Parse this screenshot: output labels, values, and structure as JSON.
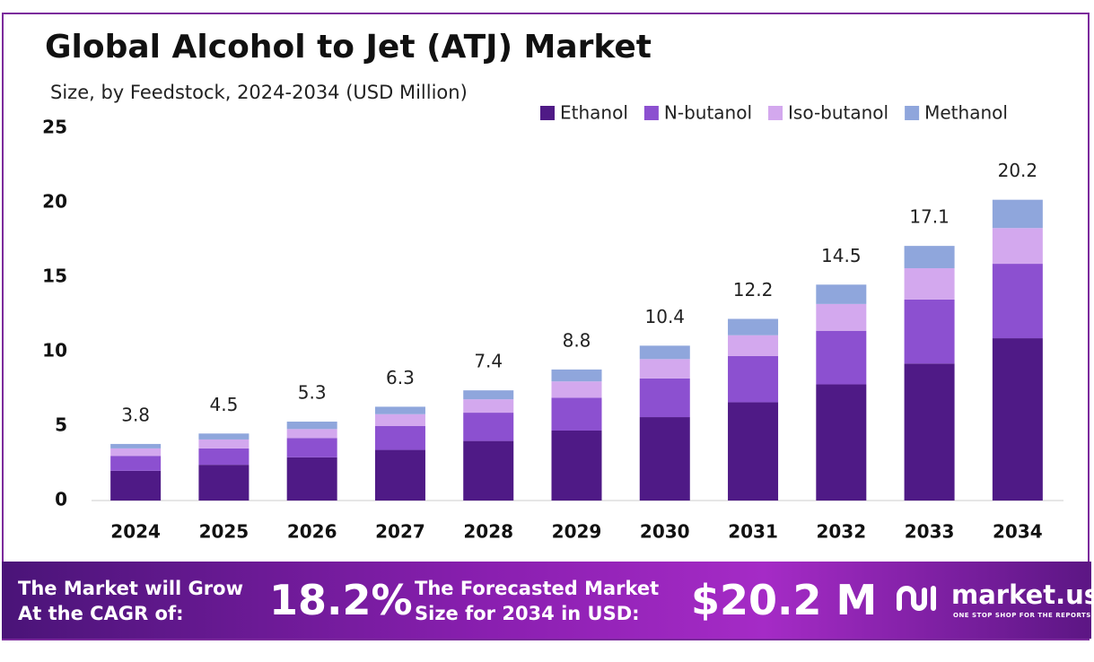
{
  "chart_data": {
    "type": "stacked-bar",
    "title": "Global Alcohol to Jet (ATJ) Market",
    "subtitle": "Size, by Feedstock, 2024-2034 (USD Million)",
    "categories": [
      "2024",
      "2025",
      "2026",
      "2027",
      "2028",
      "2029",
      "2030",
      "2031",
      "2032",
      "2033",
      "2034"
    ],
    "series": [
      {
        "name": "Ethanol",
        "color": "#4f1a86",
        "values": [
          2.0,
          2.4,
          2.9,
          3.4,
          4.0,
          4.7,
          5.6,
          6.6,
          7.8,
          9.2,
          10.9
        ]
      },
      {
        "name": "N-butanol",
        "color": "#8c50d0",
        "values": [
          1.0,
          1.1,
          1.3,
          1.6,
          1.9,
          2.2,
          2.6,
          3.1,
          3.6,
          4.3,
          5.0
        ]
      },
      {
        "name": "Iso-butanol",
        "color": "#d3a8ee",
        "values": [
          0.5,
          0.6,
          0.6,
          0.8,
          0.9,
          1.1,
          1.3,
          1.4,
          1.8,
          2.1,
          2.4
        ]
      },
      {
        "name": "Methanol",
        "color": "#8fa6dc",
        "values": [
          0.3,
          0.4,
          0.5,
          0.5,
          0.6,
          0.8,
          0.9,
          1.1,
          1.3,
          1.5,
          1.9
        ]
      }
    ],
    "totals": [
      3.8,
      4.5,
      5.3,
      6.3,
      7.4,
      8.8,
      10.4,
      12.2,
      14.5,
      17.1,
      20.2
    ],
    "ylim": [
      0,
      25
    ],
    "yticks": [
      0,
      5,
      10,
      15,
      20,
      25
    ],
    "grid": false,
    "legend": "top-right"
  },
  "banner": {
    "cagr_line1": "The Market will Grow",
    "cagr_line2": "At the CAGR of:",
    "cagr": "18.2%",
    "forecast_line1": "The Forecasted Market",
    "forecast_line2": "Size for 2034 in USD:",
    "forecast": "$20.2 M",
    "brand": "market.us",
    "tagline": "ONE STOP SHOP FOR THE REPORTS"
  }
}
